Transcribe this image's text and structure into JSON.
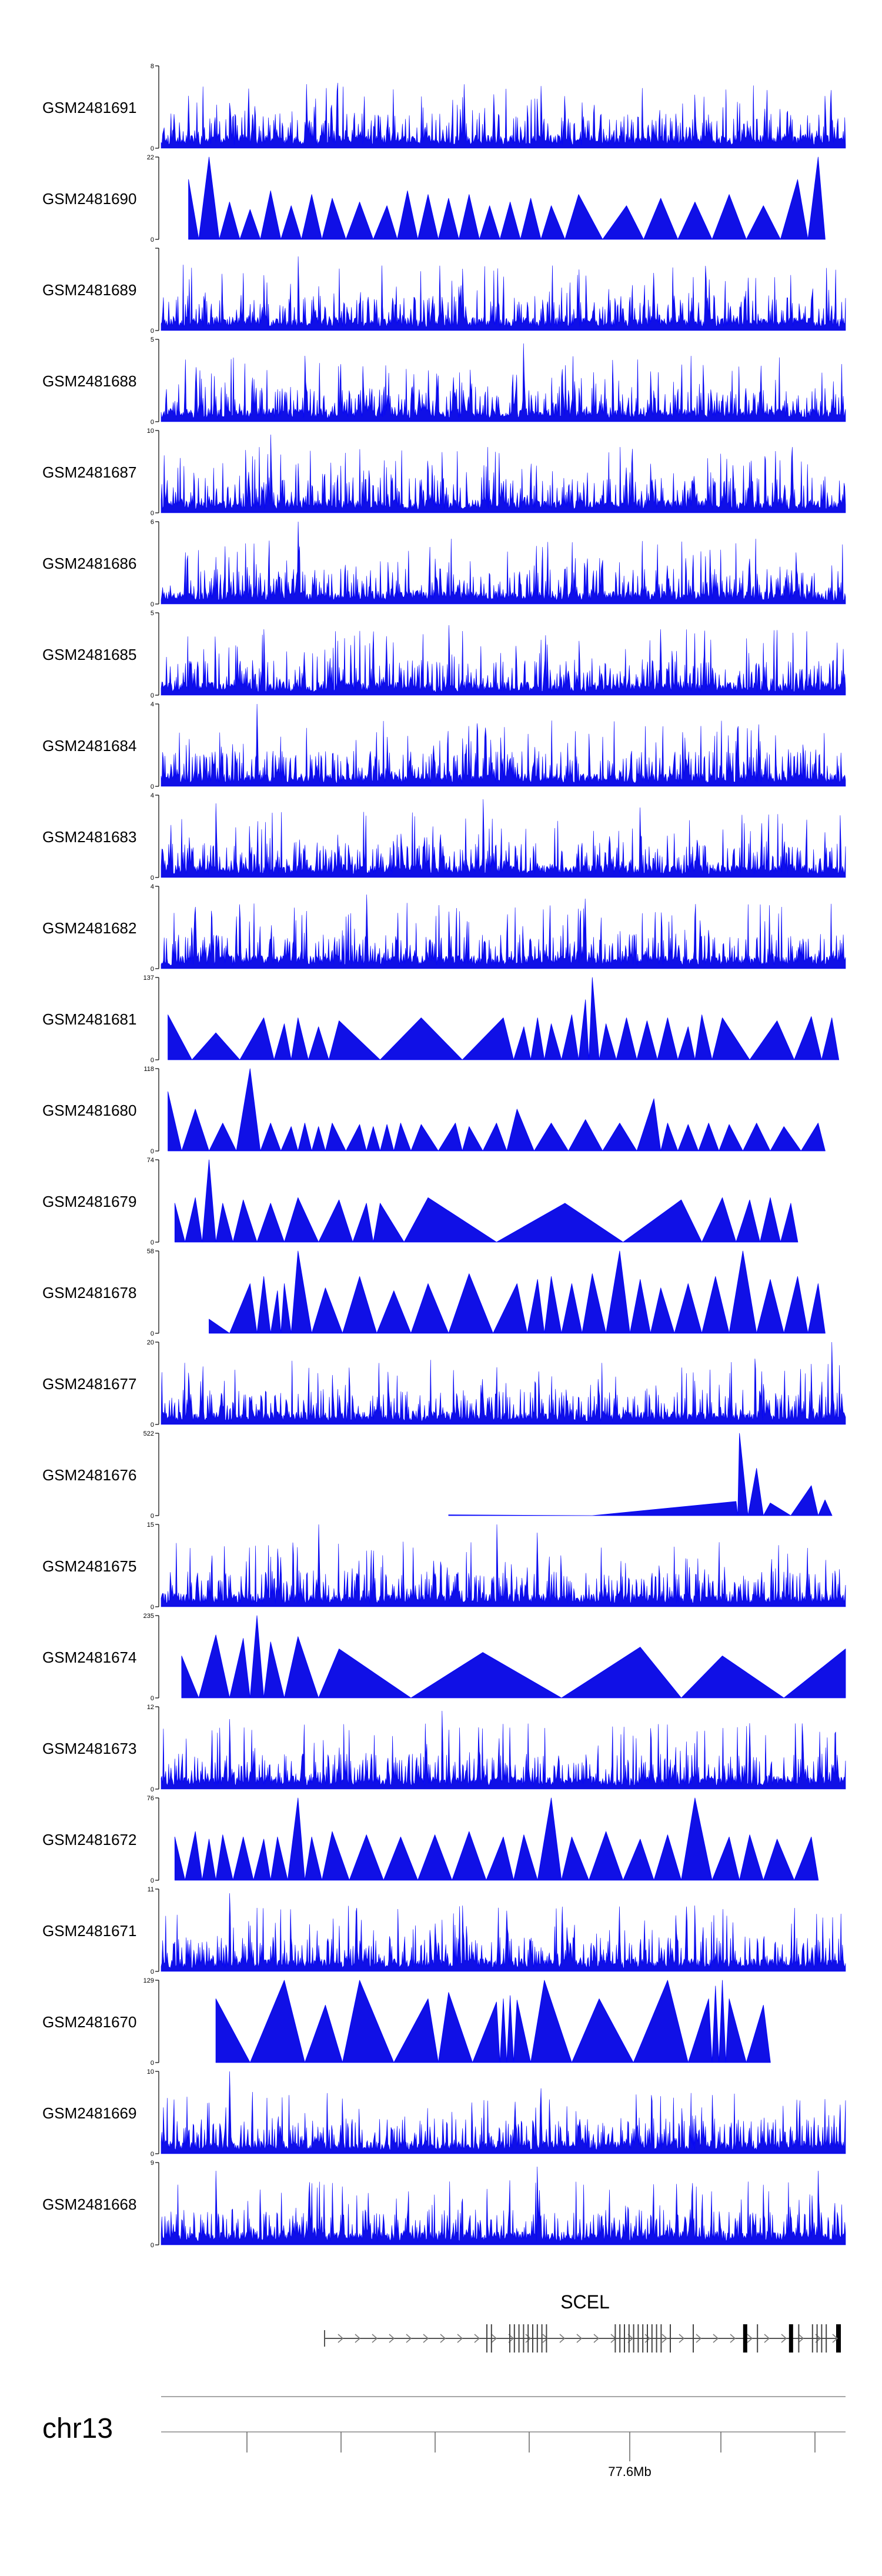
{
  "chart_data": {
    "type": "area",
    "title": "",
    "chromosome": "chr13",
    "axis_tick_label": "77.6Mb",
    "gene": {
      "name": "SCEL",
      "strand": "+",
      "exon_marks": [
        0.15,
        0.15,
        0.16,
        0.2,
        0.21,
        0.22,
        0.23,
        0.24,
        0.25,
        0.26,
        0.27,
        0.28,
        0.43,
        0.44,
        0.45,
        0.46,
        0.47,
        0.48,
        0.49,
        0.5,
        0.51,
        0.52,
        0.53,
        0.55,
        0.6,
        0.71,
        0.74,
        0.81,
        0.83,
        0.86,
        0.87,
        0.88,
        0.89
      ]
    },
    "series": [
      {
        "name": "GSM2481691",
        "ymax": "8",
        "style": "dense",
        "seed": 11,
        "peaks": [
          [
            0.1,
            0.55
          ],
          [
            0.55,
            0.6
          ],
          [
            0.78,
            0.65
          ]
        ]
      },
      {
        "name": "GSM2481690",
        "ymax": "22",
        "style": "sparse",
        "x": [
          0.04,
          0.07,
          0.1,
          0.13,
          0.16,
          0.19,
          0.22,
          0.25,
          0.29,
          0.33,
          0.36,
          0.39,
          0.42,
          0.45,
          0.48,
          0.51,
          0.54,
          0.57,
          0.61,
          0.68,
          0.73,
          0.78,
          0.83,
          0.88,
          0.93,
          0.96
        ],
        "y": [
          16,
          22,
          10,
          8,
          13,
          9,
          12,
          11,
          10,
          9,
          13,
          12,
          11,
          12,
          9,
          10,
          11,
          9,
          12,
          9,
          11,
          10,
          12,
          9,
          16,
          22
        ]
      },
      {
        "name": "GSM2481689",
        "ymax": "",
        "style": "dense",
        "seed": 23,
        "peaks": [
          [
            0.2,
            0.9
          ],
          [
            0.44,
            0.75
          ],
          [
            0.72,
            0.7
          ]
        ]
      },
      {
        "name": "GSM2481688",
        "ymax": "5",
        "style": "dense",
        "seed": 37,
        "peaks": [
          [
            0.21,
            0.8
          ],
          [
            0.53,
            0.95
          ],
          [
            0.66,
            0.75
          ]
        ]
      },
      {
        "name": "GSM2481687",
        "ymax": "10",
        "style": "dense",
        "seed": 41,
        "peaks": [
          [
            0.16,
            0.95
          ],
          [
            0.2,
            0.6
          ],
          [
            0.68,
            0.55
          ]
        ]
      },
      {
        "name": "GSM2481686",
        "ymax": "6",
        "style": "dense",
        "seed": 53,
        "peaks": [
          [
            0.2,
            1.0
          ],
          [
            0.4,
            0.55
          ],
          [
            0.86,
            0.55
          ]
        ]
      },
      {
        "name": "GSM2481685",
        "ymax": "5",
        "style": "dense",
        "seed": 67,
        "peaks": [
          [
            0.15,
            0.8
          ],
          [
            0.42,
            0.85
          ],
          [
            0.73,
            0.8
          ]
        ]
      },
      {
        "name": "GSM2481684",
        "ymax": "4",
        "style": "dense",
        "seed": 71,
        "peaks": [
          [
            0.14,
            1.0
          ],
          [
            0.33,
            0.6
          ],
          [
            0.84,
            0.55
          ]
        ]
      },
      {
        "name": "GSM2481683",
        "ymax": "4",
        "style": "dense",
        "seed": 83,
        "peaks": [
          [
            0.08,
            0.9
          ],
          [
            0.47,
            0.95
          ],
          [
            0.7,
            0.85
          ]
        ]
      },
      {
        "name": "GSM2481682",
        "ymax": "4",
        "style": "dense",
        "seed": 97,
        "peaks": [
          [
            0.05,
            0.75
          ],
          [
            0.3,
            0.9
          ],
          [
            0.62,
            0.85
          ]
        ]
      },
      {
        "name": "GSM2481681",
        "ymax": "137",
        "style": "sparse",
        "x": [
          0.01,
          0.08,
          0.15,
          0.18,
          0.2,
          0.23,
          0.26,
          0.38,
          0.5,
          0.53,
          0.55,
          0.57,
          0.6,
          0.62,
          0.63,
          0.65,
          0.68,
          0.71,
          0.74,
          0.77,
          0.79,
          0.82,
          0.9,
          0.95,
          0.98
        ],
        "y": [
          75,
          45,
          70,
          60,
          70,
          55,
          65,
          70,
          70,
          55,
          70,
          60,
          75,
          100,
          137,
          60,
          70,
          65,
          70,
          55,
          75,
          70,
          65,
          72,
          70
        ]
      },
      {
        "name": "GSM2481680",
        "ymax": "118",
        "style": "sparse",
        "x": [
          0.01,
          0.05,
          0.09,
          0.13,
          0.16,
          0.19,
          0.21,
          0.23,
          0.25,
          0.29,
          0.31,
          0.33,
          0.35,
          0.38,
          0.43,
          0.45,
          0.49,
          0.52,
          0.57,
          0.62,
          0.67,
          0.72,
          0.74,
          0.77,
          0.8,
          0.83,
          0.87,
          0.91,
          0.96
        ],
        "y": [
          85,
          60,
          40,
          118,
          40,
          35,
          40,
          35,
          40,
          38,
          35,
          38,
          40,
          38,
          40,
          35,
          40,
          60,
          40,
          45,
          40,
          75,
          40,
          38,
          40,
          38,
          40,
          35,
          40
        ]
      },
      {
        "name": "GSM2481679",
        "ymax": "74",
        "style": "sparse",
        "x": [
          0.02,
          0.05,
          0.07,
          0.09,
          0.12,
          0.16,
          0.2,
          0.26,
          0.3,
          0.32,
          0.39,
          0.59,
          0.76,
          0.82,
          0.86,
          0.89,
          0.92
        ],
        "y": [
          35,
          40,
          74,
          35,
          38,
          35,
          40,
          38,
          35,
          35,
          40,
          35,
          38,
          40,
          38,
          40,
          35
        ]
      },
      {
        "name": "GSM2481678",
        "ymax": "58",
        "style": "sparse",
        "x": [
          0.07,
          0.13,
          0.15,
          0.17,
          0.18,
          0.2,
          0.24,
          0.29,
          0.34,
          0.39,
          0.45,
          0.52,
          0.55,
          0.57,
          0.6,
          0.63,
          0.67,
          0.7,
          0.73,
          0.77,
          0.81,
          0.85,
          0.89,
          0.93,
          0.96
        ],
        "y": [
          10,
          35,
          40,
          30,
          35,
          58,
          32,
          40,
          30,
          35,
          42,
          35,
          38,
          40,
          35,
          42,
          58,
          38,
          32,
          35,
          40,
          58,
          38,
          40,
          35
        ]
      },
      {
        "name": "GSM2481677",
        "ymax": "20",
        "style": "dense",
        "seed": 101,
        "peaks": [
          [
            0.25,
            0.6
          ],
          [
            0.98,
            1.0
          ],
          [
            0.47,
            0.35
          ]
        ]
      },
      {
        "name": "GSM2481676",
        "ymax": "522",
        "style": "sparse",
        "x": [
          0.42,
          0.84,
          0.845,
          0.87,
          0.89,
          0.95,
          0.97
        ],
        "y": [
          5,
          90,
          522,
          300,
          80,
          190,
          100
        ]
      },
      {
        "name": "GSM2481675",
        "ymax": "15",
        "style": "dense",
        "seed": 113,
        "peaks": [
          [
            0.23,
            1.0
          ],
          [
            0.49,
            1.0
          ],
          [
            0.55,
            0.9
          ]
        ]
      },
      {
        "name": "GSM2481674",
        "ymax": "235",
        "style": "sparse",
        "x": [
          0.03,
          0.08,
          0.12,
          0.14,
          0.16,
          0.2,
          0.26,
          0.47,
          0.7,
          0.82,
          1.0
        ],
        "y": [
          120,
          180,
          170,
          235,
          160,
          175,
          140,
          130,
          145,
          120,
          140
        ]
      },
      {
        "name": "GSM2481673",
        "ymax": "12",
        "style": "dense",
        "seed": 127,
        "peaks": [
          [
            0.1,
            0.85
          ],
          [
            0.41,
            0.95
          ],
          [
            0.86,
            0.8
          ]
        ]
      },
      {
        "name": "GSM2481672",
        "ymax": "76",
        "style": "sparse",
        "x": [
          0.02,
          0.05,
          0.07,
          0.09,
          0.12,
          0.15,
          0.17,
          0.2,
          0.22,
          0.25,
          0.3,
          0.35,
          0.4,
          0.45,
          0.5,
          0.53,
          0.57,
          0.6,
          0.65,
          0.7,
          0.74,
          0.78,
          0.83,
          0.86,
          0.9,
          0.95
        ],
        "y": [
          40,
          45,
          38,
          42,
          40,
          38,
          40,
          76,
          40,
          45,
          42,
          40,
          42,
          45,
          40,
          42,
          76,
          40,
          45,
          38,
          42,
          76,
          40,
          42,
          38,
          40
        ]
      },
      {
        "name": "GSM2481671",
        "ymax": "11",
        "style": "dense",
        "seed": 131,
        "peaks": [
          [
            0.1,
            0.95
          ],
          [
            0.44,
            0.8
          ],
          [
            0.78,
            0.8
          ]
        ]
      },
      {
        "name": "GSM2481670",
        "ymax": "129",
        "style": "sparse",
        "x": [
          0.08,
          0.18,
          0.24,
          0.29,
          0.39,
          0.42,
          0.49,
          0.5,
          0.51,
          0.52,
          0.56,
          0.64,
          0.74,
          0.8,
          0.81,
          0.82,
          0.83,
          0.88
        ],
        "y": [
          100,
          129,
          90,
          129,
          100,
          110,
          95,
          100,
          105,
          98,
          129,
          100,
          129,
          100,
          120,
          129,
          100,
          90
        ]
      },
      {
        "name": "GSM2481669",
        "ymax": "10",
        "style": "dense",
        "seed": 139,
        "peaks": [
          [
            0.1,
            1.0
          ],
          [
            0.62,
            0.35
          ],
          [
            0.96,
            0.35
          ]
        ]
      },
      {
        "name": "GSM2481668",
        "ymax": "9",
        "style": "dense",
        "seed": 149,
        "peaks": [
          [
            0.08,
            0.9
          ],
          [
            0.55,
            0.95
          ],
          [
            0.96,
            0.9
          ]
        ]
      }
    ]
  },
  "colors": {
    "track_fill": "#1010e6",
    "track_stroke": "#0000ff",
    "axis": "#000000",
    "gene": "#555555"
  }
}
